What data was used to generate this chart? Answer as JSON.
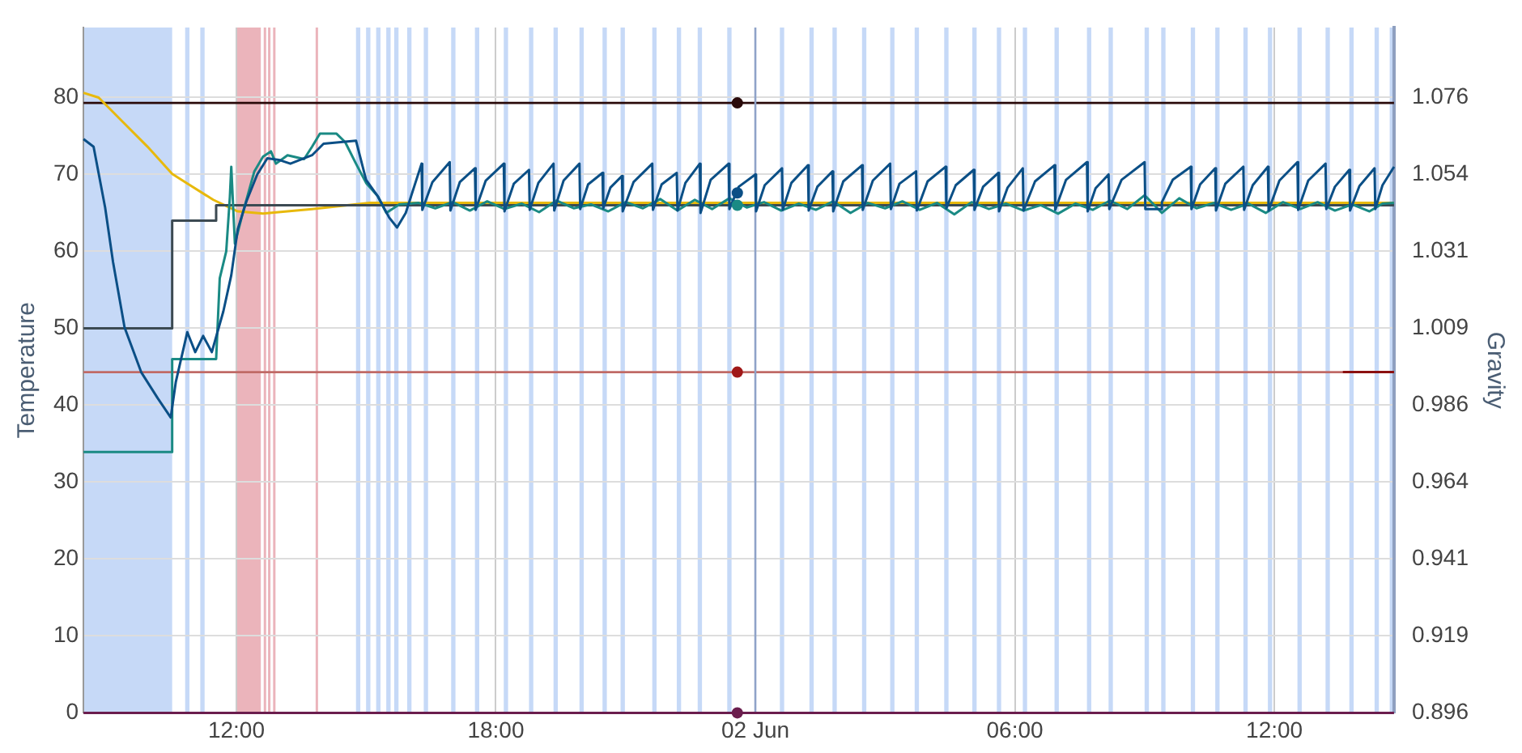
{
  "chart_data": {
    "type": "line",
    "ylabel": "Temperature",
    "y2label": "Gravity",
    "grid": true,
    "legend": false,
    "marker": "none",
    "line_style": "solid",
    "xlim": [
      "--06-01T08:28",
      "--06-02T14:46"
    ],
    "xticks": [
      {
        "value": "--06-01T12:00",
        "label": "12:00"
      },
      {
        "value": "--06-01T18:00",
        "label": "18:00"
      },
      {
        "value": "--06-02T00:00",
        "label": "02 Jun"
      },
      {
        "value": "--06-02T06:00",
        "label": "06:00"
      },
      {
        "value": "--06-02T12:00",
        "label": "12:00"
      }
    ],
    "ylim": [
      0,
      89.1
    ],
    "yticks": [
      0,
      10,
      20,
      30,
      40,
      50,
      60,
      70,
      80
    ],
    "y2lim": [
      0.896,
      1.0965
    ],
    "y2ticks": [
      0.896,
      {
        "value": 0.9185,
        "label": "0.919"
      },
      0.941,
      {
        "value": 0.9635,
        "label": "0.964"
      },
      0.986,
      {
        "value": 1.0085,
        "label": "1.009"
      },
      1.031,
      {
        "value": 1.0535,
        "label": "1.054"
      },
      1.076
    ],
    "series": [
      {
        "color": "#6b1e4e",
        "x": [
          "--06-01T08:28",
          "--06-02T14:46"
        ],
        "values": [
          0,
          0
        ]
      },
      {
        "color": "#8b1010",
        "x": [
          "--06-02T13:35",
          "--06-02T14:46"
        ],
        "values": [
          44.3,
          44.3
        ]
      },
      {
        "axis": "y2",
        "color": "#e8b90c",
        "x": [
          "--06-01T08:28",
          "--06-01T08:49",
          "--06-01T09:23",
          "--06-01T09:57",
          "--06-01T10:31",
          "--06-01T10:54",
          "--06-01T11:28",
          "--06-01T12:02",
          "--06-01T12:37",
          "--06-01T13:45",
          "--06-01T15:05",
          "--06-02T14:46"
        ],
        "values": [
          1.0774,
          1.076,
          1.0688,
          1.0616,
          1.0537,
          1.0506,
          1.0461,
          1.0427,
          1.0421,
          1.0434,
          1.0452,
          1.0452
        ]
      },
      {
        "type": "step",
        "color": "#3c4a52",
        "x": [
          "--06-01T08:28",
          "--06-01T10:31",
          "--06-01T11:32",
          "--06-02T14:46"
        ],
        "values": [
          50,
          64,
          66,
          66
        ]
      },
      {
        "color": "#1a8a84",
        "x": [
          "--06-01T08:28",
          "--06-01T10:31",
          "--06-01T10:31",
          "--06-01T11:32",
          "--06-01T11:37",
          "--06-01T11:46",
          "--06-01T11:51",
          "--06-01T11:53",
          "--06-01T11:58",
          "--06-01T12:09",
          "--06-01T12:25",
          "--06-01T12:37",
          "--06-01T12:48",
          "--06-01T12:55",
          "--06-01T13:11",
          "--06-01T13:34",
          "--06-01T13:45",
          "--06-01T13:56",
          "--06-01T14:19",
          "--06-01T14:31",
          "--06-01T14:46",
          "--06-01T15:00",
          "--06-01T15:16",
          "--06-01T15:28",
          "--06-01T15:46",
          "--06-01T16:13",
          "--06-01T16:36",
          "--06-01T17:00",
          "--06-01T17:24",
          "--06-01T17:48",
          "--06-01T18:12",
          "--06-01T18:36",
          "--06-01T19:00",
          "--06-01T19:24",
          "--06-01T19:48",
          "--06-01T20:12",
          "--06-01T20:36",
          "--06-01T21:00",
          "--06-01T21:24",
          "--06-01T21:48",
          "--06-01T22:12",
          "--06-01T22:36",
          "--06-01T23:00",
          "--06-01T23:24",
          "--06-01T23:48",
          "--06-02T00:12",
          "--06-02T00:36",
          "--06-02T01:00",
          "--06-02T01:24",
          "--06-02T01:48",
          "--06-02T02:12",
          "--06-02T02:36",
          "--06-02T03:00",
          "--06-02T03:24",
          "--06-02T03:48",
          "--06-02T04:12",
          "--06-02T04:36",
          "--06-02T05:00",
          "--06-02T05:24",
          "--06-02T05:48",
          "--06-02T06:12",
          "--06-02T06:36",
          "--06-02T07:00",
          "--06-02T07:24",
          "--06-02T07:48",
          "--06-02T08:12",
          "--06-02T08:36",
          "--06-02T09:00",
          "--06-02T09:24",
          "--06-02T09:48",
          "--06-02T10:12",
          "--06-02T10:36",
          "--06-02T11:00",
          "--06-02T11:24",
          "--06-02T11:48",
          "--06-02T12:12",
          "--06-02T12:36",
          "--06-02T13:00",
          "--06-02T13:24",
          "--06-02T13:48",
          "--06-02T14:12",
          "--06-02T14:30",
          "--06-02T14:46"
        ],
        "values": [
          33.9,
          33.9,
          46,
          46,
          56.5,
          60,
          67,
          71,
          61,
          65,
          70.4,
          72.3,
          73,
          71.4,
          72.5,
          72,
          73.6,
          75.3,
          75.3,
          74.2,
          71.4,
          68.9,
          67.2,
          65,
          66.1,
          66.3,
          65.6,
          66.4,
          65.3,
          66.5,
          65.5,
          66.2,
          65.1,
          66.6,
          65.6,
          66.1,
          65.2,
          66.4,
          65.6,
          66.8,
          65.3,
          66.7,
          65.5,
          66.9,
          65.7,
          66.4,
          65.3,
          66.2,
          65.4,
          66.5,
          65.0,
          66.3,
          65.6,
          66.5,
          65.4,
          66.3,
          64.8,
          66.4,
          65.5,
          66.2,
          65.3,
          66.0,
          64.9,
          66.2,
          65.4,
          66.6,
          65.5,
          67.3,
          65.0,
          66.9,
          65.6,
          66.3,
          65.4,
          66.2,
          65.0,
          66.4,
          65.5,
          66.4,
          65.3,
          66.1,
          65.2,
          66.2,
          66.3
        ]
      },
      {
        "color": "#0b4f86",
        "x": [
          "--06-01T08:28",
          "--06-01T08:42",
          "--06-01T08:58",
          "--06-01T09:09",
          "--06-01T09:25",
          "--06-01T09:48",
          "--06-01T10:11",
          "--06-01T10:29",
          "--06-01T10:36",
          "--06-01T10:52",
          "--06-01T11:03",
          "--06-01T11:14",
          "--06-01T11:26",
          "--06-01T11:42",
          "--06-01T11:53",
          "--06-01T12:02",
          "--06-01T12:14",
          "--06-01T12:29",
          "--06-01T12:43",
          "--06-01T12:59",
          "--06-01T13:15",
          "--06-01T13:45",
          "--06-01T14:01",
          "--06-01T14:46",
          "--06-01T15:00",
          "--06-01T15:16",
          "--06-01T15:32",
          "--06-01T15:43",
          "--06-01T15:55",
          "--06-01T16:17",
          "--06-01T16:18",
          "--06-01T16:32",
          "--06-01T16:56",
          "--06-01T16:57",
          "--06-01T17:10",
          "--06-01T17:31",
          "--06-01T17:32",
          "--06-01T17:46",
          "--06-01T18:11",
          "--06-01T18:12",
          "--06-01T18:25",
          "--06-01T18:46",
          "--06-01T18:47",
          "--06-01T18:59",
          "--06-01T19:20",
          "--06-01T19:21",
          "--06-01T19:34",
          "--06-01T19:56",
          "--06-01T19:57",
          "--06-01T20:08",
          "--06-01T20:28",
          "--06-01T20:29",
          "--06-01T20:39",
          "--06-01T20:55",
          "--06-01T20:56",
          "--06-01T21:11",
          "--06-01T21:37",
          "--06-01T21:38",
          "--06-01T21:50",
          "--06-01T22:11",
          "--06-01T22:12",
          "--06-01T22:23",
          "--06-01T22:43",
          "--06-01T22:44",
          "--06-01T22:58",
          "--06-01T23:23",
          "--06-01T23:24",
          "--06-01T23:37",
          "--06-02T00:00",
          "--06-02T00:01",
          "--06-02T00:13",
          "--06-02T00:37",
          "--06-02T00:38",
          "--06-02T00:50",
          "--06-02T01:13",
          "--06-02T01:14",
          "--06-02T01:26",
          "--06-02T01:47",
          "--06-02T01:48",
          "--06-02T02:02",
          "--06-02T02:28",
          "--06-02T02:29",
          "--06-02T02:43",
          "--06-02T03:07",
          "--06-02T03:08",
          "--06-02T03:20",
          "--06-02T03:43",
          "--06-02T03:44",
          "--06-02T03:59",
          "--06-02T04:24",
          "--06-02T04:25",
          "--06-02T04:38",
          "--06-02T05:03",
          "--06-02T05:04",
          "--06-02T05:16",
          "--06-02T05:37",
          "--06-02T05:38",
          "--06-02T05:50",
          "--06-02T06:11",
          "--06-02T06:12",
          "--06-02T06:28",
          "--06-02T06:55",
          "--06-02T06:56",
          "--06-02T07:11",
          "--06-02T07:40",
          "--06-02T07:41",
          "--06-02T07:52",
          "--06-02T08:10",
          "--06-02T08:11",
          "--06-02T08:28",
          "--06-02T09:00",
          "--06-02T09:01",
          "--06-02T09:23",
          "--06-02T09:24",
          "--06-02T09:39",
          "--06-02T10:04",
          "--06-02T10:05",
          "--06-02T10:17",
          "--06-02T10:38",
          "--06-02T10:39",
          "--06-02T10:52",
          "--06-02T11:17",
          "--06-02T11:18",
          "--06-02T11:30",
          "--06-02T11:51",
          "--06-02T11:52",
          "--06-02T12:07",
          "--06-02T12:32",
          "--06-02T12:33",
          "--06-02T12:47",
          "--06-02T13:11",
          "--06-02T13:12",
          "--06-02T13:24",
          "--06-02T13:44",
          "--06-02T13:45",
          "--06-02T13:58",
          "--06-02T14:19",
          "--06-02T14:20",
          "--06-02T14:30",
          "--06-02T14:46"
        ],
        "values": [
          74.6,
          73.6,
          65.7,
          58.6,
          50.1,
          44.3,
          40.9,
          38.4,
          43,
          49.5,
          46.9,
          49,
          46.9,
          52.2,
          56.9,
          62.9,
          66.5,
          70,
          72.1,
          71.9,
          71.4,
          72.5,
          74,
          74.4,
          69.3,
          67.2,
          64.4,
          63.1,
          65,
          71.4,
          65.4,
          69.0,
          71.6,
          65.3,
          69,
          70.8,
          65.4,
          69.2,
          71.4,
          65.2,
          68.8,
          70.6,
          65.4,
          68.9,
          71.4,
          65.3,
          69.2,
          71.4,
          65.5,
          68.7,
          70.2,
          65.6,
          68.3,
          69.8,
          65.2,
          69,
          71.4,
          65.4,
          68.7,
          70.2,
          65.3,
          68.9,
          71.4,
          65.0,
          69.3,
          71.4,
          65.5,
          68.4,
          70.0,
          65.2,
          68.6,
          70.8,
          65.4,
          68.9,
          71.2,
          65.3,
          68.4,
          70.4,
          65.2,
          69.1,
          71.2,
          65.4,
          69.2,
          71.4,
          65.5,
          68.8,
          70.4,
          65.3,
          69.1,
          71.0,
          65.6,
          68.6,
          70.6,
          65.4,
          68.4,
          70.2,
          65.2,
          68.3,
          70.8,
          65.3,
          69.1,
          71.2,
          65.4,
          69.3,
          71.6,
          65.2,
          68.2,
          70.0,
          65.5,
          69.3,
          71.6,
          65.5,
          65.5,
          66.4,
          69.3,
          71.0,
          65.5,
          68.7,
          70.8,
          65.3,
          68.8,
          71.0,
          65.4,
          68.6,
          71.0,
          65.3,
          69.2,
          71.6,
          65.4,
          69.2,
          71.4,
          65.5,
          68.4,
          70.6,
          65.3,
          68.5,
          70.8,
          65.5,
          68.6,
          71.0
        ]
      },
      {
        "type": "scatter",
        "marker": "circle",
        "x": [
          "--06-01T23:35",
          "--06-01T23:35",
          "--06-01T23:35",
          "--06-01T23:35",
          "--06-01T23:35"
        ],
        "values": [
          79.3,
          44.3,
          0,
          67.6,
          66
        ],
        "colors": [
          "#2a0a0a",
          "#a01818",
          "#6b1e4e",
          "#0b4f86",
          "#1a8a84"
        ]
      }
    ],
    "ref_lines": [
      {
        "axis": "y",
        "value": 79.3,
        "color": "#2a0a0a"
      },
      {
        "axis": "y",
        "value": 44.3,
        "color": "#c06a66"
      },
      {
        "axis": "x",
        "value": "--06-02T00:00",
        "color": "#8fa3c8"
      }
    ],
    "bands": [
      {
        "axis": "x",
        "from": "--06-01T08:28",
        "to": "--06-01T10:31",
        "color": "#c6d9f7"
      },
      {
        "axis": "x",
        "from": "--06-01T10:49",
        "to": "--06-01T10:55",
        "color": "#c6d9f7"
      },
      {
        "axis": "x",
        "from": "--06-01T11:10",
        "to": "--06-01T11:16",
        "color": "#c6d9f7"
      },
      {
        "axis": "x",
        "from": "--06-01T12:00",
        "to": "--06-01T12:34",
        "color": "#ebb4bb"
      },
      {
        "axis": "x",
        "from": "--06-01T12:38",
        "to": "--06-01T12:40",
        "color": "#ebb4bb"
      },
      {
        "axis": "x",
        "from": "--06-01T12:44",
        "to": "--06-01T12:47",
        "color": "#ebb4bb"
      },
      {
        "axis": "x",
        "from": "--06-01T12:51",
        "to": "--06-01T12:53",
        "color": "#ebb4bb"
      },
      {
        "axis": "x",
        "from": "--06-01T13:50",
        "to": "--06-01T13:53",
        "color": "#ebb4bb"
      },
      {
        "axis": "x",
        "from": "--06-01T14:46",
        "to": "--06-01T14:52",
        "color": "#c6d9f7"
      },
      {
        "axis": "x",
        "from": "--06-01T15:00",
        "to": "--06-01T15:06",
        "color": "#c6d9f7"
      },
      {
        "axis": "x",
        "from": "--06-01T15:14",
        "to": "--06-01T15:20",
        "color": "#c6d9f7"
      },
      {
        "axis": "x",
        "from": "--06-01T15:28",
        "to": "--06-01T15:34",
        "color": "#c6d9f7"
      },
      {
        "axis": "x",
        "from": "--06-01T15:39",
        "to": "--06-01T15:45",
        "color": "#c6d9f7"
      },
      {
        "axis": "x",
        "from": "--06-01T15:57",
        "to": "--06-01T16:03",
        "color": "#c6d9f7"
      },
      {
        "axis": "x",
        "from": "--06-01T16:20",
        "to": "--06-01T16:26",
        "color": "#c6d9f7"
      },
      {
        "axis": "x",
        "from": "--06-01T16:58",
        "to": "--06-01T17:04",
        "color": "#c6d9f7"
      },
      {
        "axis": "x",
        "from": "--06-01T17:31",
        "to": "--06-01T17:37",
        "color": "#c6d9f7"
      },
      {
        "axis": "x",
        "from": "--06-01T18:11",
        "to": "--06-01T18:17",
        "color": "#c6d9f7"
      },
      {
        "axis": "x",
        "from": "--06-01T18:46",
        "to": "--06-01T18:52",
        "color": "#c6d9f7"
      },
      {
        "axis": "x",
        "from": "--06-01T19:20",
        "to": "--06-01T19:26",
        "color": "#c6d9f7"
      },
      {
        "axis": "x",
        "from": "--06-01T19:56",
        "to": "--06-01T20:02",
        "color": "#c6d9f7"
      },
      {
        "axis": "x",
        "from": "--06-01T20:28",
        "to": "--06-01T20:34",
        "color": "#c6d9f7"
      },
      {
        "axis": "x",
        "from": "--06-01T20:53",
        "to": "--06-01T20:59",
        "color": "#c6d9f7"
      },
      {
        "axis": "x",
        "from": "--06-01T21:37",
        "to": "--06-01T21:43",
        "color": "#c6d9f7"
      },
      {
        "axis": "x",
        "from": "--06-01T22:11",
        "to": "--06-01T22:17",
        "color": "#c6d9f7"
      },
      {
        "axis": "x",
        "from": "--06-01T22:40",
        "to": "--06-01T22:46",
        "color": "#c6d9f7"
      },
      {
        "axis": "x",
        "from": "--06-01T23:21",
        "to": "--06-01T23:27",
        "color": "#c6d9f7"
      },
      {
        "axis": "x",
        "from": "--06-02T00:34",
        "to": "--06-02T00:40",
        "color": "#c6d9f7"
      },
      {
        "axis": "x",
        "from": "--06-02T01:15",
        "to": "--06-02T01:21",
        "color": "#c6d9f7"
      },
      {
        "axis": "x",
        "from": "--06-02T01:47",
        "to": "--06-02T01:53",
        "color": "#c6d9f7"
      },
      {
        "axis": "x",
        "from": "--06-02T02:28",
        "to": "--06-02T02:34",
        "color": "#c6d9f7"
      },
      {
        "axis": "x",
        "from": "--06-02T03:07",
        "to": "--06-02T03:13",
        "color": "#c6d9f7"
      },
      {
        "axis": "x",
        "from": "--06-02T03:41",
        "to": "--06-02T03:47",
        "color": "#c6d9f7"
      },
      {
        "axis": "x",
        "from": "--06-02T04:22",
        "to": "--06-02T04:28",
        "color": "#c6d9f7"
      },
      {
        "axis": "x",
        "from": "--06-02T05:01",
        "to": "--06-02T05:07",
        "color": "#c6d9f7"
      },
      {
        "axis": "x",
        "from": "--06-02T05:35",
        "to": "--06-02T05:41",
        "color": "#c6d9f7"
      },
      {
        "axis": "x",
        "from": "--06-02T06:11",
        "to": "--06-02T06:17",
        "color": "#c6d9f7"
      },
      {
        "axis": "x",
        "from": "--06-02T06:55",
        "to": "--06-02T07:01",
        "color": "#c6d9f7"
      },
      {
        "axis": "x",
        "from": "--06-02T07:40",
        "to": "--06-02T07:46",
        "color": "#c6d9f7"
      },
      {
        "axis": "x",
        "from": "--06-02T08:10",
        "to": "--06-02T08:16",
        "color": "#c6d9f7"
      },
      {
        "axis": "x",
        "from": "--06-02T09:00",
        "to": "--06-02T09:06",
        "color": "#c6d9f7"
      },
      {
        "axis": "x",
        "from": "--06-02T09:23",
        "to": "--06-02T09:29",
        "color": "#c6d9f7"
      },
      {
        "axis": "x",
        "from": "--06-02T10:04",
        "to": "--06-02T10:10",
        "color": "#c6d9f7"
      },
      {
        "axis": "x",
        "from": "--06-02T10:38",
        "to": "--06-02T10:44",
        "color": "#c6d9f7"
      },
      {
        "axis": "x",
        "from": "--06-02T11:17",
        "to": "--06-02T11:23",
        "color": "#c6d9f7"
      },
      {
        "axis": "x",
        "from": "--06-02T11:51",
        "to": "--06-02T11:57",
        "color": "#c6d9f7"
      },
      {
        "axis": "x",
        "from": "--06-02T12:32",
        "to": "--06-02T12:38",
        "color": "#c6d9f7"
      },
      {
        "axis": "x",
        "from": "--06-02T13:11",
        "to": "--06-02T13:17",
        "color": "#c6d9f7"
      },
      {
        "axis": "x",
        "from": "--06-02T13:44",
        "to": "--06-02T13:50",
        "color": "#c6d9f7"
      },
      {
        "axis": "x",
        "from": "--06-02T14:19",
        "to": "--06-02T14:25",
        "color": "#c6d9f7"
      },
      {
        "axis": "x",
        "from": "--06-02T14:40",
        "to": "--06-02T14:46",
        "color": "#c6d9f7"
      }
    ]
  }
}
